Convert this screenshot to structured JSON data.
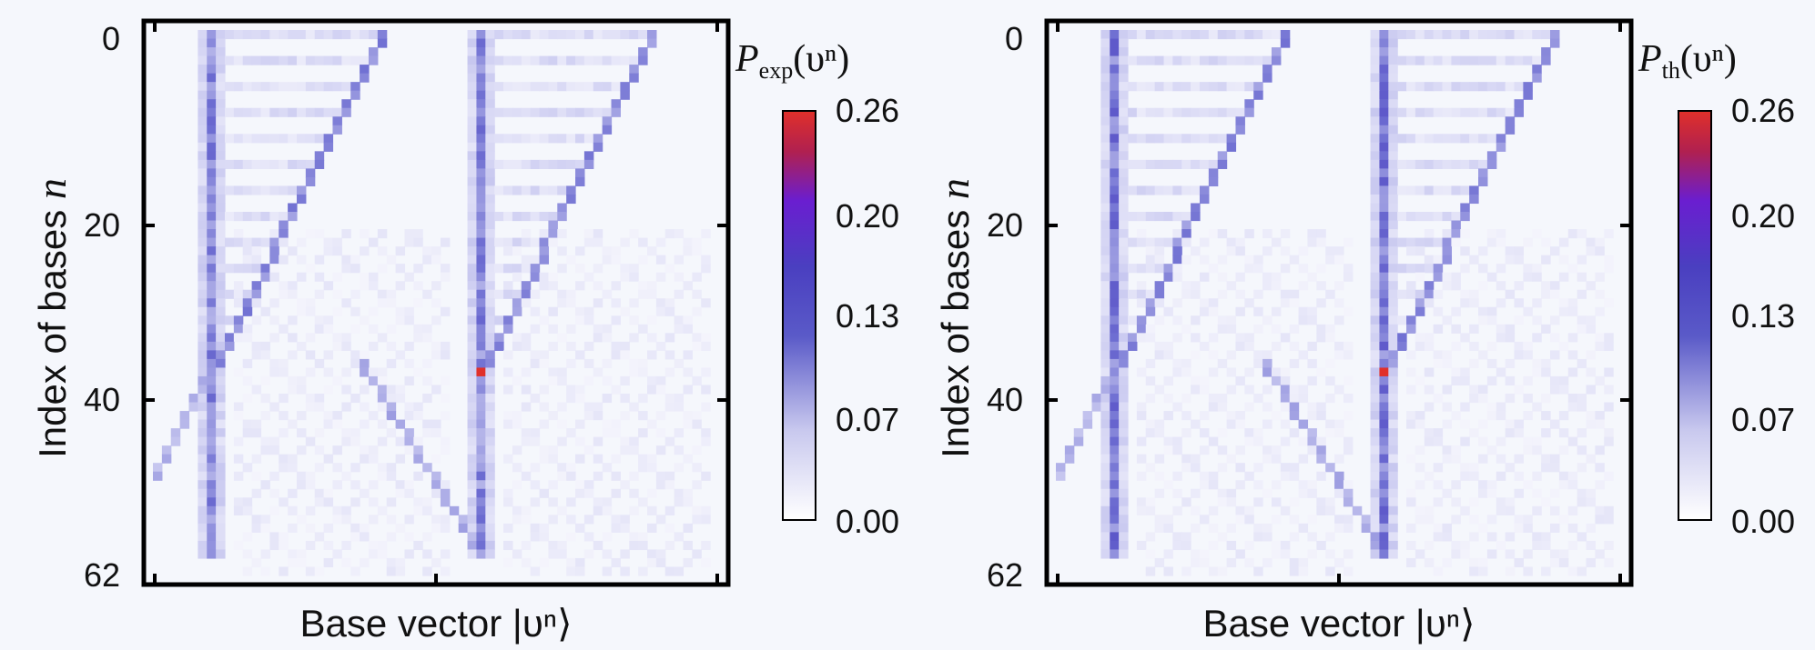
{
  "chart_data": [
    {
      "type": "heatmap",
      "xlabel": "Base vector |υⁿ⟩",
      "ylabel_prefix": "Index of bases ",
      "ylabel_var": "n",
      "colorbar_symbol": "P",
      "colorbar_sub": "exp",
      "colorbar_arg": "(υⁿ)",
      "yticks": [
        "0",
        "20",
        "40",
        "62"
      ],
      "ytick_values": [
        0,
        20,
        40,
        62
      ],
      "colorbar_ticks": [
        "0.26",
        "0.20",
        "0.13",
        "0.07",
        "0.00"
      ],
      "vmin": 0,
      "vmax": 0.26,
      "n_rows": 63,
      "n_cols": 63,
      "peak": {
        "row": 39,
        "col": 36,
        "value": 0.26
      },
      "colormap": [
        "#ffffff",
        "#d6d6f4",
        "#6f6fd2",
        "#4a3fc0",
        "#6a1ed0",
        "#c02438",
        "#e0302a"
      ]
    },
    {
      "type": "heatmap",
      "xlabel": "Base vector |υⁿ⟩",
      "ylabel_prefix": "Index of bases ",
      "ylabel_var": "n",
      "colorbar_symbol": "P",
      "colorbar_sub": "th",
      "colorbar_arg": "(υⁿ)",
      "yticks": [
        "0",
        "20",
        "40",
        "62"
      ],
      "ytick_values": [
        0,
        20,
        40,
        62
      ],
      "colorbar_ticks": [
        "0.26",
        "0.20",
        "0.13",
        "0.07",
        "0.00"
      ],
      "vmin": 0,
      "vmax": 0.26,
      "n_rows": 63,
      "n_cols": 63,
      "peak": {
        "row": 39,
        "col": 36,
        "value": 0.26
      },
      "colormap": [
        "#ffffff",
        "#d6d6f4",
        "#6f6fd2",
        "#4a3fc0",
        "#6a1ed0",
        "#c02438",
        "#e0302a"
      ]
    }
  ]
}
